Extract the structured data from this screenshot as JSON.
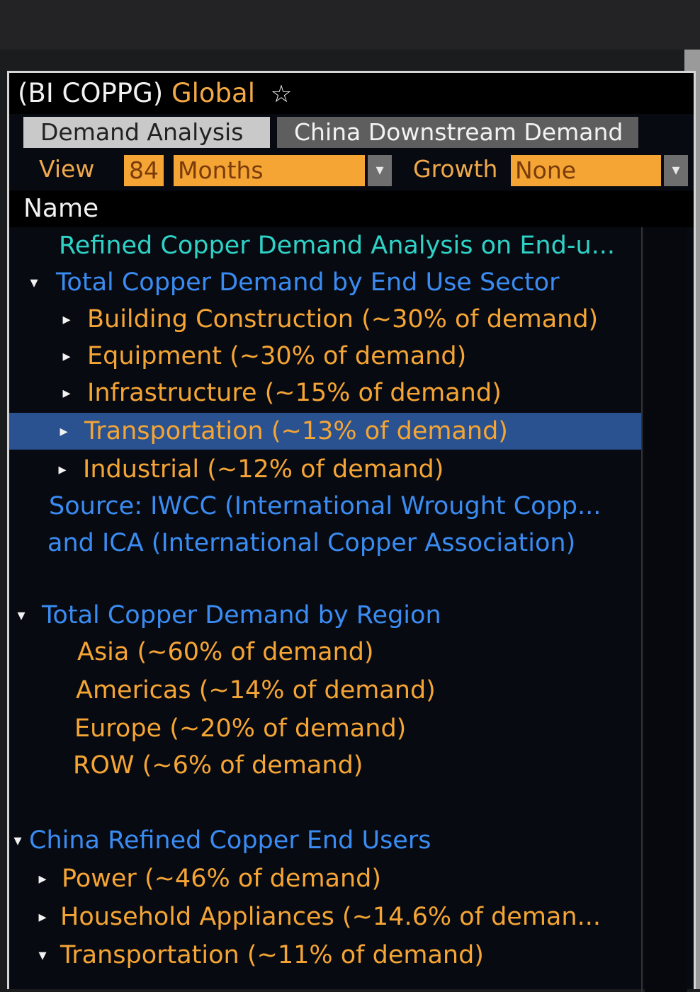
{
  "window": {
    "ticker": "(BI COPPG)",
    "subtitle": "Global",
    "star": "☆"
  },
  "tabs": [
    {
      "label": "Demand Analysis",
      "active": true
    },
    {
      "label": "China Downstream Demand",
      "active": false
    }
  ],
  "controls": {
    "view_label": "View",
    "view_value": "84",
    "period_value": "Months",
    "growth_label": "Growth",
    "growth_value": "None",
    "dropdown_glyph": "▾"
  },
  "column_header": "Name",
  "rows": [
    {
      "text": "Refined Copper Demand Analysis on End-u...",
      "color": "#2ed3c6",
      "glyph": ""
    },
    {
      "text": "Total Copper Demand by End Use Sector",
      "color": "#3a8cf2",
      "glyph": "▾"
    },
    {
      "text": "Building Construction (~30% of demand)",
      "color": "#f5a534",
      "glyph": "▸"
    },
    {
      "text": "Equipment (~30% of demand)",
      "color": "#f5a534",
      "glyph": "▸"
    },
    {
      "text": "Infrastructure (~15% of demand)",
      "color": "#f5a534",
      "glyph": "▸"
    },
    {
      "text": "Transportation (~13% of demand)",
      "color": "#f5a534",
      "glyph": "▸",
      "selected": true
    },
    {
      "text": "Industrial (~12% of demand)",
      "color": "#f5a534",
      "glyph": "▸"
    },
    {
      "text": "Source: IWCC (International Wrought Copp...",
      "color": "#3a8cf2",
      "glyph": ""
    },
    {
      "text": "and ICA (International Copper Association)",
      "color": "#3a8cf2",
      "glyph": ""
    },
    {
      "text": "Total Copper Demand by Region",
      "color": "#3a8cf2",
      "glyph": "▾"
    },
    {
      "text": "Asia (~60% of demand)",
      "color": "#f5a534",
      "glyph": ""
    },
    {
      "text": "Americas (~14% of demand)",
      "color": "#f5a534",
      "glyph": ""
    },
    {
      "text": "Europe (~20% of demand)",
      "color": "#f5a534",
      "glyph": ""
    },
    {
      "text": "ROW (~6% of demand)",
      "color": "#f5a534",
      "glyph": ""
    },
    {
      "text": "China Refined Copper End Users",
      "color": "#3a8cf2",
      "glyph": "▾"
    },
    {
      "text": "Power  (~46% of demand)",
      "color": "#f5a534",
      "glyph": "▸"
    },
    {
      "text": "Household Appliances (~14.6% of deman...",
      "color": "#f5a534",
      "glyph": "▸"
    },
    {
      "text": "Transportation (~11% of demand)",
      "color": "#f5a534",
      "glyph": "▾"
    }
  ]
}
